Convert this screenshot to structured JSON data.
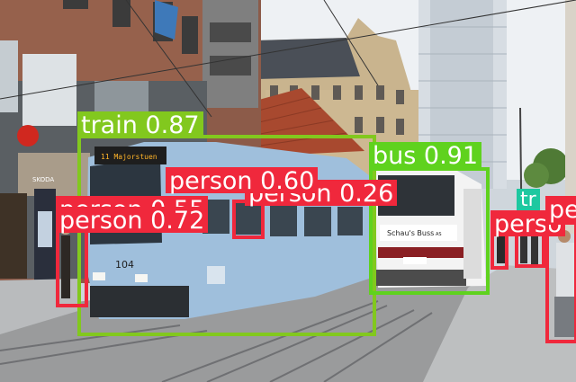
{
  "scene_description_colors": {
    "sky": "#eef1f4",
    "tram": "#9fbfdc",
    "bus": "#f3f3f3",
    "pavement": "#b9bbbd",
    "brick": "#8c5b49"
  },
  "detections": [
    {
      "label": "train 0.87",
      "color": "#82c81e"
    },
    {
      "label": "bus 0.91",
      "color": "#5fd21e"
    },
    {
      "label": "person 0.60",
      "color": "#f0283c"
    },
    {
      "label": "person 0.26",
      "color": "#f0283c"
    },
    {
      "label": "person 0.55",
      "color": "#f0283c"
    },
    {
      "label": "person 0.72",
      "color": "#f0283c"
    },
    {
      "label": "perso",
      "color": "#f0283c"
    },
    {
      "label": "pe",
      "color": "#f0283c"
    },
    {
      "label": "tr",
      "color": "#1ec8a0"
    }
  ],
  "signage": {
    "tram_destination": "11 Majorstuen",
    "tram_number": "104",
    "bus_company": "Schau's Buss",
    "bus_suffix": "AS",
    "skoda": "SKODA"
  }
}
